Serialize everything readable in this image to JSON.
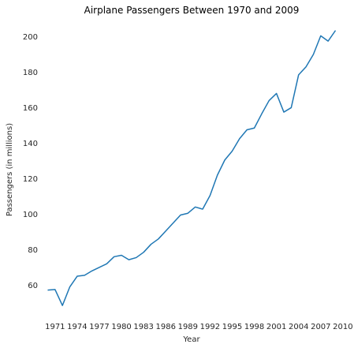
{
  "chart_data": {
    "type": "line",
    "title": "Airplane Passengers Between 1970 and 2009",
    "xlabel": "Year",
    "ylabel": "Passengers (in millions)",
    "xlim": [
      1967.6,
      2011.4
    ],
    "ylim": [
      41,
      210
    ],
    "x_ticks": [
      1971,
      1974,
      1977,
      1980,
      1983,
      1986,
      1989,
      1992,
      1995,
      1998,
      2001,
      2004,
      2007,
      2010
    ],
    "y_ticks": [
      60,
      80,
      100,
      120,
      140,
      160,
      180,
      200
    ],
    "grid": false,
    "legend": "none",
    "series": [
      {
        "color": "#1f77b4",
        "x": [
          1970,
          1971,
          1972,
          1973,
          1974,
          1975,
          1976,
          1977,
          1978,
          1979,
          1980,
          1981,
          1982,
          1983,
          1984,
          1985,
          1986,
          1987,
          1988,
          1989,
          1990,
          1991,
          1992,
          1993,
          1994,
          1995,
          1996,
          1997,
          1998,
          1999,
          2000,
          2001,
          2002,
          2003,
          2004,
          2005,
          2006,
          2007,
          2008,
          2009
        ],
        "y": [
          57.2,
          57.5,
          48.5,
          59.0,
          65.0,
          65.5,
          68.0,
          70.0,
          72.0,
          76.0,
          76.8,
          74.3,
          75.5,
          78.5,
          83.0,
          86.0,
          90.5,
          95.0,
          99.5,
          100.5,
          104.0,
          102.8,
          110.5,
          122.0,
          130.5,
          135.5,
          142.5,
          147.5,
          148.5,
          156.5,
          164.0,
          168.0,
          157.5,
          160.0,
          178.5,
          183.0,
          190.0,
          200.5,
          197.5,
          203.5
        ]
      }
    ]
  }
}
